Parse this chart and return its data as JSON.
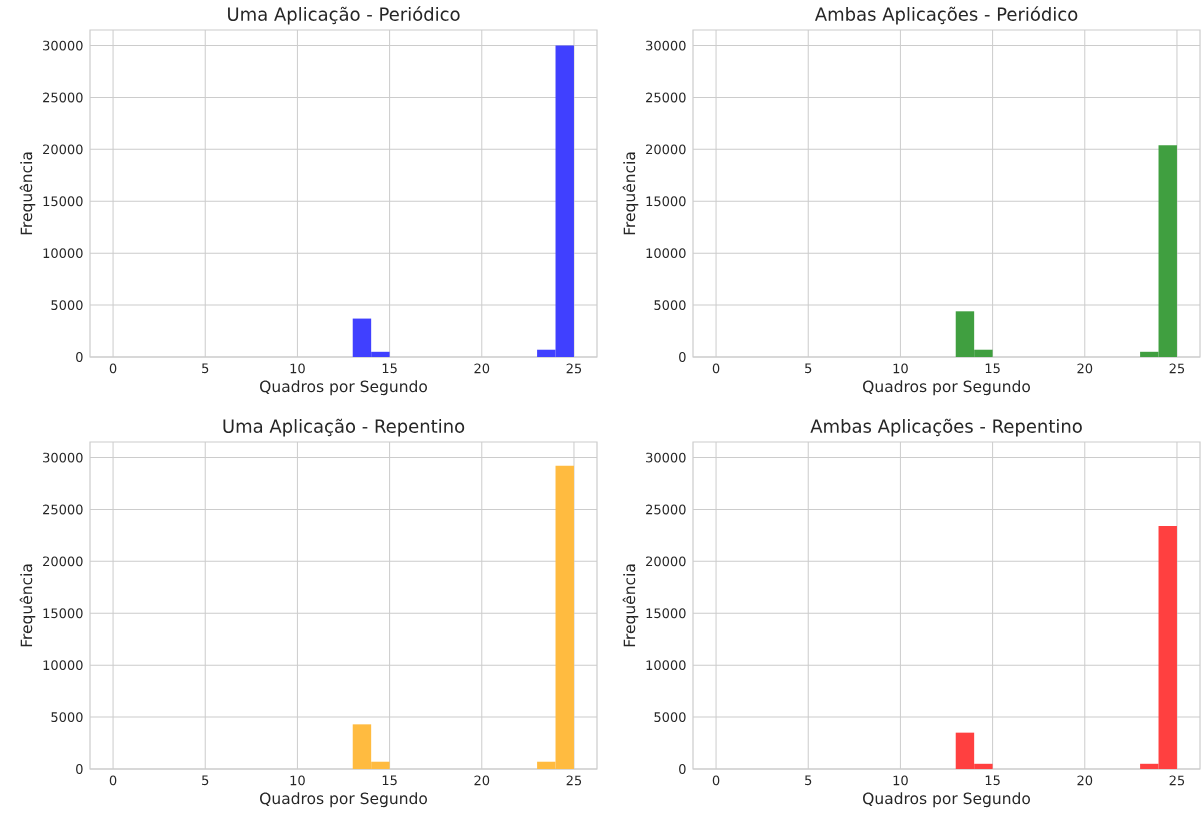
{
  "chart_data": [
    {
      "type": "histogram",
      "title": "Uma Aplicação - Periódico",
      "xlabel": "Quadros por Segundo",
      "ylabel": "Frequência",
      "bins": [
        0,
        1,
        2,
        3,
        4,
        5,
        6,
        7,
        8,
        9,
        10,
        11,
        12,
        13,
        14,
        15,
        16,
        17,
        18,
        19,
        20,
        21,
        22,
        23,
        24,
        25
      ],
      "values": [
        0,
        0,
        0,
        0,
        0,
        0,
        0,
        0,
        0,
        0,
        0,
        0,
        0,
        3700,
        500,
        0,
        0,
        0,
        0,
        0,
        0,
        0,
        0,
        700,
        30000
      ],
      "color": "#4040ff",
      "xlim": [
        -1.25,
        26.25
      ],
      "ylim": [
        0,
        31500
      ],
      "xticks": [
        0,
        5,
        10,
        15,
        20,
        25
      ],
      "yticks": [
        0,
        5000,
        10000,
        15000,
        20000,
        25000,
        30000
      ],
      "grid": true
    },
    {
      "type": "histogram",
      "title": "Ambas Aplicações - Periódico",
      "xlabel": "Quadros por Segundo",
      "ylabel": "Frequência",
      "bins": [
        0,
        1,
        2,
        3,
        4,
        5,
        6,
        7,
        8,
        9,
        10,
        11,
        12,
        13,
        14,
        15,
        16,
        17,
        18,
        19,
        20,
        21,
        22,
        23,
        24,
        25
      ],
      "values": [
        0,
        0,
        0,
        0,
        0,
        0,
        0,
        0,
        0,
        0,
        0,
        0,
        0,
        4400,
        700,
        0,
        0,
        0,
        0,
        0,
        0,
        0,
        0,
        500,
        20400
      ],
      "color": "#409f40",
      "xlim": [
        -1.25,
        26.25
      ],
      "ylim": [
        0,
        31500
      ],
      "xticks": [
        0,
        5,
        10,
        15,
        20,
        25
      ],
      "yticks": [
        0,
        5000,
        10000,
        15000,
        20000,
        25000,
        30000
      ],
      "grid": true
    },
    {
      "type": "histogram",
      "title": "Uma Aplicação - Repentino",
      "xlabel": "Quadros por Segundo",
      "ylabel": "Frequência",
      "bins": [
        0,
        1,
        2,
        3,
        4,
        5,
        6,
        7,
        8,
        9,
        10,
        11,
        12,
        13,
        14,
        15,
        16,
        17,
        18,
        19,
        20,
        21,
        22,
        23,
        24,
        25
      ],
      "values": [
        0,
        0,
        0,
        0,
        0,
        0,
        0,
        0,
        0,
        0,
        0,
        0,
        0,
        4300,
        700,
        0,
        0,
        0,
        0,
        0,
        0,
        0,
        0,
        700,
        29200
      ],
      "color": "#ffbb40",
      "xlim": [
        -1.25,
        26.25
      ],
      "ylim": [
        0,
        31500
      ],
      "xticks": [
        0,
        5,
        10,
        15,
        20,
        25
      ],
      "yticks": [
        0,
        5000,
        10000,
        15000,
        20000,
        25000,
        30000
      ],
      "grid": true
    },
    {
      "type": "histogram",
      "title": "Ambas Aplicações - Repentino",
      "xlabel": "Quadros por Segundo",
      "ylabel": "Frequência",
      "bins": [
        0,
        1,
        2,
        3,
        4,
        5,
        6,
        7,
        8,
        9,
        10,
        11,
        12,
        13,
        14,
        15,
        16,
        17,
        18,
        19,
        20,
        21,
        22,
        23,
        24,
        25
      ],
      "values": [
        0,
        0,
        0,
        0,
        0,
        0,
        0,
        0,
        0,
        0,
        0,
        0,
        0,
        3500,
        500,
        0,
        0,
        0,
        0,
        0,
        0,
        0,
        0,
        500,
        23400
      ],
      "color": "#ff4040",
      "xlim": [
        -1.25,
        26.25
      ],
      "ylim": [
        0,
        31500
      ],
      "xticks": [
        0,
        5,
        10,
        15,
        20,
        25
      ],
      "yticks": [
        0,
        5000,
        10000,
        15000,
        20000,
        25000,
        30000
      ],
      "grid": true
    }
  ]
}
